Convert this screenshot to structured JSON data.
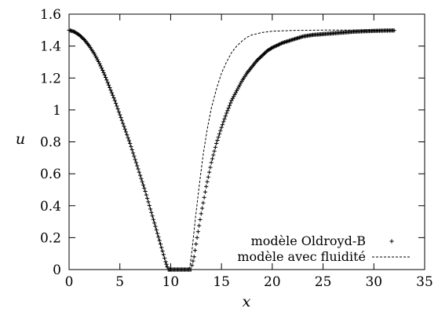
{
  "chart_data": {
    "type": "scatter",
    "xlabel": "x",
    "ylabel": "u",
    "xlim": [
      0,
      35
    ],
    "ylim": [
      0,
      1.6
    ],
    "xticks": [
      0,
      5,
      10,
      15,
      20,
      25,
      30,
      35
    ],
    "yticks": [
      0,
      0.2,
      0.4,
      0.6,
      0.8,
      1,
      1.2,
      1.4,
      1.6
    ],
    "grid": false,
    "legend_position": "bottom-right",
    "series": [
      {
        "name": "modèle Oldroyd-B",
        "style": "plus-markers",
        "color": "#000000",
        "points": [
          [
            0,
            1.5
          ],
          [
            0.5,
            1.49
          ],
          [
            1,
            1.47
          ],
          [
            1.5,
            1.44
          ],
          [
            2,
            1.4
          ],
          [
            2.5,
            1.35
          ],
          [
            3,
            1.29
          ],
          [
            3.5,
            1.22
          ],
          [
            4,
            1.14
          ],
          [
            4.5,
            1.06
          ],
          [
            5,
            0.97
          ],
          [
            5.5,
            0.88
          ],
          [
            6,
            0.79
          ],
          [
            6.5,
            0.69
          ],
          [
            7,
            0.59
          ],
          [
            7.5,
            0.49
          ],
          [
            8,
            0.38
          ],
          [
            8.5,
            0.27
          ],
          [
            9,
            0.16
          ],
          [
            9.5,
            0.05
          ],
          [
            9.75,
            0.0
          ],
          [
            10,
            0.0
          ],
          [
            10.5,
            0.0
          ],
          [
            11,
            0.0
          ],
          [
            11.5,
            0.0
          ],
          [
            12,
            0.0
          ],
          [
            12.3,
            0.08
          ],
          [
            12.6,
            0.2
          ],
          [
            13,
            0.35
          ],
          [
            13.5,
            0.52
          ],
          [
            14,
            0.67
          ],
          [
            14.5,
            0.79
          ],
          [
            15,
            0.89
          ],
          [
            15.5,
            0.98
          ],
          [
            16,
            1.06
          ],
          [
            16.5,
            1.12
          ],
          [
            17,
            1.18
          ],
          [
            17.5,
            1.23
          ],
          [
            18,
            1.27
          ],
          [
            18.5,
            1.31
          ],
          [
            19,
            1.34
          ],
          [
            19.5,
            1.37
          ],
          [
            20,
            1.39
          ],
          [
            21,
            1.42
          ],
          [
            22,
            1.44
          ],
          [
            23,
            1.46
          ],
          [
            24,
            1.47
          ],
          [
            25,
            1.475
          ],
          [
            26,
            1.48
          ],
          [
            27,
            1.485
          ],
          [
            28,
            1.49
          ],
          [
            29,
            1.493
          ],
          [
            30,
            1.495
          ],
          [
            31,
            1.497
          ],
          [
            32,
            1.498
          ]
        ]
      },
      {
        "name": "modèle avec fluidité",
        "style": "dashed-line",
        "color": "#000000",
        "points": [
          [
            0,
            1.5
          ],
          [
            0.5,
            1.49
          ],
          [
            1,
            1.47
          ],
          [
            1.5,
            1.44
          ],
          [
            2,
            1.4
          ],
          [
            2.5,
            1.35
          ],
          [
            3,
            1.29
          ],
          [
            3.5,
            1.22
          ],
          [
            4,
            1.14
          ],
          [
            4.5,
            1.06
          ],
          [
            5,
            0.97
          ],
          [
            5.5,
            0.88
          ],
          [
            6,
            0.79
          ],
          [
            6.5,
            0.69
          ],
          [
            7,
            0.59
          ],
          [
            7.5,
            0.49
          ],
          [
            8,
            0.38
          ],
          [
            8.5,
            0.27
          ],
          [
            9,
            0.15
          ],
          [
            9.5,
            0.04
          ],
          [
            9.65,
            0.0
          ],
          [
            10,
            0.0
          ],
          [
            10.5,
            0.0
          ],
          [
            11,
            0.0
          ],
          [
            11.5,
            0.0
          ],
          [
            11.85,
            0.0
          ],
          [
            12.1,
            0.12
          ],
          [
            12.4,
            0.3
          ],
          [
            12.8,
            0.52
          ],
          [
            13.2,
            0.72
          ],
          [
            13.6,
            0.88
          ],
          [
            14,
            1.01
          ],
          [
            14.5,
            1.13
          ],
          [
            15,
            1.23
          ],
          [
            15.5,
            1.3
          ],
          [
            16,
            1.36
          ],
          [
            16.5,
            1.4
          ],
          [
            17,
            1.43
          ],
          [
            17.5,
            1.455
          ],
          [
            18,
            1.47
          ],
          [
            19,
            1.485
          ],
          [
            20,
            1.493
          ],
          [
            22,
            1.498
          ],
          [
            25,
            1.5
          ],
          [
            28,
            1.5
          ],
          [
            32,
            1.5
          ]
        ]
      }
    ]
  }
}
